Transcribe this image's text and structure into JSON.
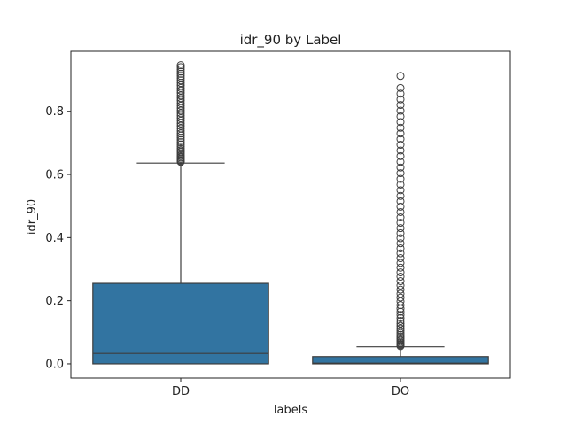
{
  "chart_data": {
    "type": "box",
    "title": "idr_90 by Label",
    "xlabel": "labels",
    "ylabel": "idr_90",
    "categories": [
      "DD",
      "DO"
    ],
    "ylim": [
      -0.045,
      0.99
    ],
    "yticks": [
      0.0,
      0.2,
      0.4,
      0.6,
      0.8
    ],
    "ytick_labels": [
      "0.0",
      "0.2",
      "0.4",
      "0.6",
      "0.8"
    ],
    "grid": false,
    "colors": {
      "box": "#3274a1",
      "line": "#3d3d3d"
    },
    "boxes": [
      {
        "category": "DD",
        "whisker_low": 0.0,
        "q1": 0.0,
        "median": 0.033,
        "q3": 0.255,
        "whisker_high": 0.636,
        "outliers": [
          0.64,
          0.643,
          0.646,
          0.65,
          0.654,
          0.658,
          0.662,
          0.667,
          0.672,
          0.677,
          0.683,
          0.689,
          0.695,
          0.702,
          0.709,
          0.716,
          0.723,
          0.73,
          0.738,
          0.746,
          0.754,
          0.762,
          0.77,
          0.778,
          0.786,
          0.794,
          0.802,
          0.81,
          0.818,
          0.826,
          0.834,
          0.842,
          0.85,
          0.858,
          0.866,
          0.874,
          0.882,
          0.89,
          0.898,
          0.905,
          0.912,
          0.919,
          0.926,
          0.933,
          0.94,
          0.946
        ]
      },
      {
        "category": "DO",
        "whisker_low": 0.0,
        "q1": 0.0,
        "median": 0.002,
        "q3": 0.023,
        "whisker_high": 0.054,
        "outliers": [
          0.056,
          0.059,
          0.062,
          0.066,
          0.07,
          0.075,
          0.08,
          0.086,
          0.092,
          0.098,
          0.105,
          0.112,
          0.12,
          0.128,
          0.136,
          0.145,
          0.155,
          0.165,
          0.175,
          0.186,
          0.198,
          0.21,
          0.222,
          0.235,
          0.248,
          0.262,
          0.276,
          0.29,
          0.305,
          0.32,
          0.335,
          0.35,
          0.366,
          0.382,
          0.398,
          0.414,
          0.43,
          0.447,
          0.464,
          0.481,
          0.498,
          0.515,
          0.532,
          0.55,
          0.568,
          0.586,
          0.604,
          0.622,
          0.64,
          0.658,
          0.676,
          0.694,
          0.712,
          0.73,
          0.748,
          0.766,
          0.784,
          0.802,
          0.82,
          0.838,
          0.856,
          0.874,
          0.912
        ]
      }
    ]
  }
}
